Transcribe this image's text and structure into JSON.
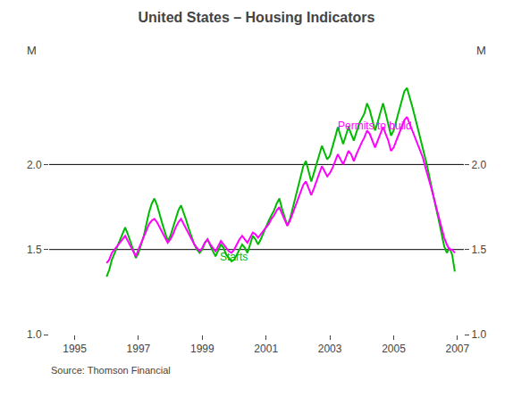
{
  "chart_data": {
    "type": "line",
    "title": "United States – Housing Indicators",
    "source": "Source: Thomson Financial",
    "ylabel": "M",
    "y2label": "M",
    "x": [
      1996,
      1996.0833333333333,
      1996.1666666666667,
      1996.25,
      1996.3333333333333,
      1996.4166666666667,
      1996.5,
      1996.5833333333333,
      1996.6666666666667,
      1996.75,
      1996.8333333333333,
      1996.9166666666667,
      1997,
      1997.0833333333333,
      1997.1666666666667,
      1997.25,
      1997.3333333333333,
      1997.4166666666667,
      1997.5,
      1997.5833333333333,
      1997.6666666666667,
      1997.75,
      1997.8333333333333,
      1997.9166666666667,
      1998,
      1998.0833333333333,
      1998.1666666666667,
      1998.25,
      1998.3333333333333,
      1998.4166666666667,
      1998.5,
      1998.5833333333333,
      1998.6666666666667,
      1998.75,
      1998.8333333333333,
      1998.9166666666667,
      1999,
      1999.0833333333333,
      1999.1666666666667,
      1999.25,
      1999.3333333333333,
      1999.4166666666667,
      1999.5,
      1999.5833333333333,
      1999.6666666666667,
      1999.75,
      1999.8333333333333,
      1999.9166666666667,
      2000,
      2000.0833333333333,
      2000.1666666666667,
      2000.25,
      2000.3333333333333,
      2000.4166666666667,
      2000.5,
      2000.5833333333333,
      2000.6666666666667,
      2000.75,
      2000.8333333333333,
      2000.9166666666667,
      2001,
      2001.0833333333333,
      2001.1666666666667,
      2001.25,
      2001.3333333333333,
      2001.4166666666667,
      2001.5,
      2001.5833333333333,
      2001.6666666666667,
      2001.75,
      2001.8333333333333,
      2001.9166666666667,
      2002,
      2002.0833333333333,
      2002.1666666666667,
      2002.25,
      2002.3333333333333,
      2002.4166666666667,
      2002.5,
      2002.5833333333333,
      2002.6666666666667,
      2002.75,
      2002.8333333333333,
      2002.9166666666667,
      2003,
      2003.0833333333333,
      2003.1666666666667,
      2003.25,
      2003.3333333333333,
      2003.4166666666667,
      2003.5,
      2003.5833333333333,
      2003.6666666666667,
      2003.75,
      2003.8333333333333,
      2003.9166666666667,
      2004,
      2004.0833333333333,
      2004.1666666666667,
      2004.25,
      2004.3333333333333,
      2004.4166666666667,
      2004.5,
      2004.5833333333333,
      2004.6666666666667,
      2004.75,
      2004.8333333333333,
      2004.9166666666667,
      2005,
      2005.0833333333333,
      2005.1666666666667,
      2005.25,
      2005.3333333333333,
      2005.4166666666667,
      2005.5,
      2005.5833333333333,
      2005.6666666666667,
      2005.75,
      2005.8333333333333,
      2005.9166666666667,
      2006,
      2006.0833333333333,
      2006.1666666666667,
      2006.25,
      2006.3333333333333,
      2006.4166666666667,
      2006.5,
      2006.5833333333333,
      2006.6666666666667,
      2006.75,
      2006.8333333333333,
      2006.9166666666667
    ],
    "series": [
      {
        "name": "Permits to build",
        "color": "#FF00FF",
        "values": [
          1.42,
          1.44,
          1.48,
          1.5,
          1.52,
          1.54,
          1.56,
          1.58,
          1.55,
          1.52,
          1.49,
          1.46,
          1.5,
          1.54,
          1.58,
          1.62,
          1.65,
          1.67,
          1.68,
          1.66,
          1.63,
          1.6,
          1.57,
          1.54,
          1.56,
          1.59,
          1.63,
          1.66,
          1.68,
          1.65,
          1.62,
          1.59,
          1.56,
          1.53,
          1.51,
          1.49,
          1.51,
          1.54,
          1.56,
          1.53,
          1.51,
          1.49,
          1.52,
          1.55,
          1.53,
          1.51,
          1.49,
          1.48,
          1.5,
          1.53,
          1.56,
          1.58,
          1.56,
          1.54,
          1.57,
          1.6,
          1.59,
          1.57,
          1.59,
          1.61,
          1.63,
          1.65,
          1.68,
          1.7,
          1.73,
          1.75,
          1.71,
          1.67,
          1.64,
          1.67,
          1.71,
          1.75,
          1.79,
          1.84,
          1.88,
          1.9,
          1.86,
          1.82,
          1.86,
          1.9,
          1.95,
          1.99,
          1.96,
          1.93,
          1.95,
          1.98,
          2.02,
          2.06,
          2.03,
          2.0,
          2.04,
          2.08,
          2.06,
          2.02,
          2.06,
          2.1,
          2.13,
          2.16,
          2.2,
          2.18,
          2.14,
          2.1,
          2.14,
          2.18,
          2.22,
          2.18,
          2.14,
          2.08,
          2.1,
          2.14,
          2.18,
          2.22,
          2.26,
          2.28,
          2.24,
          2.2,
          2.16,
          2.12,
          2.08,
          2.04,
          1.98,
          1.93,
          1.87,
          1.81,
          1.75,
          1.7,
          1.63,
          1.57,
          1.53,
          1.5,
          1.5,
          1.48
        ]
      },
      {
        "name": "Starts",
        "color": "#00BB00",
        "values": [
          1.34,
          1.38,
          1.44,
          1.48,
          1.52,
          1.56,
          1.6,
          1.63,
          1.59,
          1.55,
          1.5,
          1.45,
          1.48,
          1.53,
          1.58,
          1.65,
          1.72,
          1.77,
          1.8,
          1.76,
          1.7,
          1.65,
          1.6,
          1.55,
          1.58,
          1.63,
          1.68,
          1.73,
          1.76,
          1.72,
          1.67,
          1.62,
          1.57,
          1.53,
          1.5,
          1.48,
          1.5,
          1.54,
          1.56,
          1.52,
          1.49,
          1.46,
          1.5,
          1.53,
          1.51,
          1.47,
          1.45,
          1.43,
          1.44,
          1.47,
          1.5,
          1.53,
          1.51,
          1.48,
          1.53,
          1.58,
          1.56,
          1.53,
          1.56,
          1.6,
          1.64,
          1.67,
          1.7,
          1.73,
          1.77,
          1.8,
          1.74,
          1.69,
          1.64,
          1.68,
          1.74,
          1.8,
          1.86,
          1.93,
          1.99,
          2.02,
          1.96,
          1.9,
          1.95,
          2.0,
          2.06,
          2.11,
          2.07,
          2.03,
          2.05,
          2.1,
          2.16,
          2.22,
          2.17,
          2.12,
          2.17,
          2.22,
          2.18,
          2.14,
          2.19,
          2.24,
          2.27,
          2.3,
          2.36,
          2.32,
          2.26,
          2.2,
          2.25,
          2.3,
          2.36,
          2.3,
          2.24,
          2.17,
          2.2,
          2.26,
          2.31,
          2.37,
          2.43,
          2.45,
          2.4,
          2.34,
          2.28,
          2.22,
          2.16,
          2.1,
          2.03,
          1.96,
          1.88,
          1.81,
          1.74,
          1.67,
          1.59,
          1.52,
          1.48,
          1.51,
          1.47,
          1.37
        ]
      }
    ],
    "annotations": [
      {
        "text": "Permits to build",
        "x": 2003.2,
        "y": 2.18,
        "color": "#FF00FF"
      },
      {
        "text": "Starts",
        "x": 1999.5,
        "y": 1.41,
        "color": "#00BB00"
      }
    ],
    "hlines": [
      1.5,
      2.0
    ],
    "xlim": [
      1994.2,
      2007.2
    ],
    "xticks": [
      1995,
      1997,
      1999,
      2001,
      2003,
      2005,
      2007
    ],
    "ylim": [
      1.0,
      2.6
    ],
    "yticks": [
      {
        "value": 1.0,
        "label": "1.0"
      },
      {
        "value": 1.5,
        "label": "1.5"
      },
      {
        "value": 2.0,
        "label": "2.0"
      }
    ],
    "y2lim": [
      1.0,
      2.6
    ],
    "y2ticks": [
      {
        "value": 1.0,
        "label": "1.0"
      },
      {
        "value": 1.5,
        "label": "1.5"
      },
      {
        "value": 2.0,
        "label": "2.0"
      }
    ],
    "grid": false
  }
}
